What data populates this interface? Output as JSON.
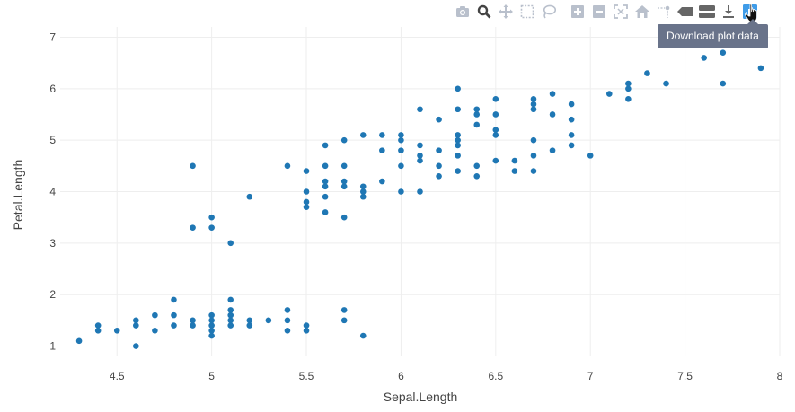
{
  "chart_data": {
    "type": "scatter",
    "title": "",
    "xlabel": "Sepal.Length",
    "ylabel": "Petal.Length",
    "xlim": [
      4.2,
      8.0
    ],
    "ylim": [
      0.8,
      7.2
    ],
    "xticks": [
      4.5,
      5,
      5.5,
      6,
      6.5,
      7,
      7.5,
      8
    ],
    "xtick_labels": [
      "4.5",
      "5",
      "5.5",
      "6",
      "6.5",
      "7",
      "7.5",
      "8"
    ],
    "yticks": [
      1,
      2,
      3,
      4,
      5,
      6,
      7
    ],
    "ytick_labels": [
      "1",
      "2",
      "3",
      "4",
      "5",
      "6",
      "7"
    ],
    "grid": true,
    "marker_color": "#1f77b4",
    "points": [
      [
        4.3,
        1.1
      ],
      [
        4.4,
        1.3
      ],
      [
        4.4,
        1.4
      ],
      [
        4.5,
        1.3
      ],
      [
        4.6,
        1.0
      ],
      [
        4.6,
        1.4
      ],
      [
        4.6,
        1.5
      ],
      [
        4.7,
        1.3
      ],
      [
        4.7,
        1.6
      ],
      [
        4.8,
        1.4
      ],
      [
        4.8,
        1.6
      ],
      [
        4.8,
        1.9
      ],
      [
        4.9,
        1.4
      ],
      [
        4.9,
        1.5
      ],
      [
        5.0,
        1.2
      ],
      [
        5.0,
        1.3
      ],
      [
        5.0,
        1.4
      ],
      [
        5.0,
        1.5
      ],
      [
        5.0,
        1.6
      ],
      [
        5.1,
        1.4
      ],
      [
        5.1,
        1.5
      ],
      [
        5.1,
        1.6
      ],
      [
        5.1,
        1.7
      ],
      [
        5.1,
        1.9
      ],
      [
        5.2,
        1.4
      ],
      [
        5.2,
        1.5
      ],
      [
        5.3,
        1.5
      ],
      [
        5.4,
        1.3
      ],
      [
        5.4,
        1.5
      ],
      [
        5.4,
        1.7
      ],
      [
        5.5,
        1.3
      ],
      [
        5.5,
        1.4
      ],
      [
        5.7,
        1.5
      ],
      [
        5.7,
        1.7
      ],
      [
        5.8,
        1.2
      ],
      [
        4.9,
        4.5
      ],
      [
        4.9,
        3.3
      ],
      [
        5.0,
        3.5
      ],
      [
        5.0,
        3.3
      ],
      [
        5.1,
        3.0
      ],
      [
        5.2,
        3.9
      ],
      [
        5.4,
        4.5
      ],
      [
        5.5,
        4.0
      ],
      [
        5.5,
        3.8
      ],
      [
        5.5,
        3.7
      ],
      [
        5.5,
        4.4
      ],
      [
        5.6,
        4.5
      ],
      [
        5.6,
        4.1
      ],
      [
        5.6,
        3.9
      ],
      [
        5.6,
        3.6
      ],
      [
        5.6,
        4.2
      ],
      [
        5.6,
        4.9
      ],
      [
        5.7,
        4.5
      ],
      [
        5.7,
        4.2
      ],
      [
        5.7,
        4.1
      ],
      [
        5.7,
        3.5
      ],
      [
        5.7,
        5.0
      ],
      [
        5.8,
        4.1
      ],
      [
        5.8,
        3.9
      ],
      [
        5.8,
        4.0
      ],
      [
        5.8,
        5.1
      ],
      [
        5.9,
        4.8
      ],
      [
        5.9,
        4.2
      ],
      [
        5.9,
        5.1
      ],
      [
        6.0,
        4.5
      ],
      [
        6.0,
        4.0
      ],
      [
        6.0,
        5.1
      ],
      [
        6.0,
        4.8
      ],
      [
        6.0,
        5.0
      ],
      [
        6.1,
        4.7
      ],
      [
        6.1,
        4.0
      ],
      [
        6.1,
        4.6
      ],
      [
        6.1,
        4.9
      ],
      [
        6.1,
        5.6
      ],
      [
        6.2,
        4.3
      ],
      [
        6.2,
        4.5
      ],
      [
        6.2,
        4.8
      ],
      [
        6.2,
        5.4
      ],
      [
        6.3,
        4.7
      ],
      [
        6.3,
        4.9
      ],
      [
        6.3,
        4.4
      ],
      [
        6.3,
        5.6
      ],
      [
        6.3,
        5.1
      ],
      [
        6.3,
        5.0
      ],
      [
        6.3,
        6.0
      ],
      [
        6.4,
        4.5
      ],
      [
        6.4,
        4.3
      ],
      [
        6.4,
        5.3
      ],
      [
        6.4,
        5.5
      ],
      [
        6.4,
        5.6
      ],
      [
        6.5,
        4.6
      ],
      [
        6.5,
        5.1
      ],
      [
        6.5,
        5.2
      ],
      [
        6.5,
        5.5
      ],
      [
        6.5,
        5.8
      ],
      [
        6.6,
        4.6
      ],
      [
        6.6,
        4.4
      ],
      [
        6.7,
        4.7
      ],
      [
        6.7,
        4.4
      ],
      [
        6.7,
        5.0
      ],
      [
        6.7,
        5.6
      ],
      [
        6.7,
        5.8
      ],
      [
        6.7,
        5.7
      ],
      [
        6.8,
        4.8
      ],
      [
        6.8,
        5.5
      ],
      [
        6.8,
        5.9
      ],
      [
        6.9,
        4.9
      ],
      [
        6.9,
        5.4
      ],
      [
        6.9,
        5.1
      ],
      [
        6.9,
        5.7
      ],
      [
        7.0,
        4.7
      ],
      [
        7.1,
        5.9
      ],
      [
        7.2,
        5.8
      ],
      [
        7.2,
        6.1
      ],
      [
        7.2,
        6.0
      ],
      [
        7.3,
        6.3
      ],
      [
        7.4,
        6.1
      ],
      [
        7.6,
        6.6
      ],
      [
        7.7,
        6.7
      ],
      [
        7.7,
        6.9
      ],
      [
        7.7,
        6.1
      ],
      [
        7.9,
        6.4
      ]
    ]
  },
  "modebar": {
    "buttons": [
      "camera-icon",
      "zoom-icon",
      "pan-icon",
      "box-select-icon",
      "lasso-select-icon",
      "zoom-in-icon",
      "zoom-out-icon",
      "autoscale-icon",
      "home-icon",
      "spike-lines-icon",
      "hover-closest-icon",
      "hover-compare-icon",
      "download-plot-data-icon",
      "plotly-logo-icon"
    ],
    "tooltip": "Download plot data"
  }
}
